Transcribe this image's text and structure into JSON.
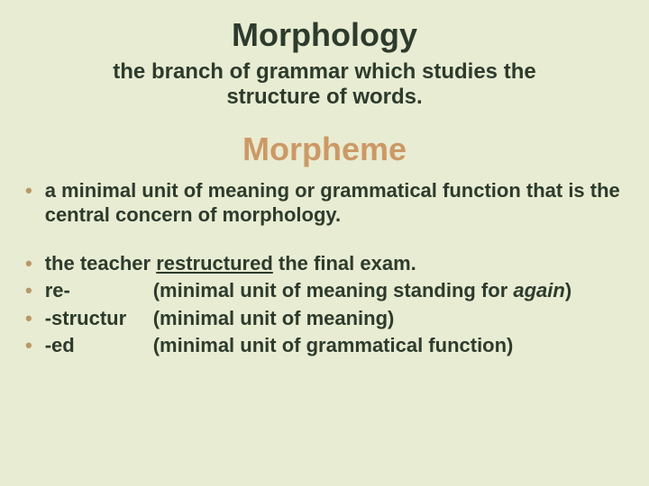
{
  "colors": {
    "background": "#e8ecd2",
    "heading_primary": "#2d3b2d",
    "heading_accent": "#cc9966",
    "body_text": "#2d3b2d",
    "bullet_marker": "#b89868"
  },
  "typography": {
    "title_fontsize": 36,
    "subtitle_fontsize": 24,
    "body_fontsize": 22,
    "weight": "bold",
    "family": "Trebuchet MS / Comic Sans style"
  },
  "title1": "Morphology",
  "subtitle1": "the branch of grammar which studies the structure of words.",
  "title2": "Morpheme",
  "def_bullet": "a minimal unit of meaning or grammatical function that is the central concern of morphology.",
  "example_sentence": {
    "pre": "the teacher ",
    "word": "restructured",
    "post": " the final exam."
  },
  "morphemes": [
    {
      "term": "re-",
      "desc_pre": "(minimal unit of meaning standing for ",
      "desc_italic": "again",
      "desc_post": ")"
    },
    {
      "term": "-structur",
      "desc_pre": "(minimal unit of meaning)",
      "desc_italic": "",
      "desc_post": ""
    },
    {
      "term": "-ed",
      "desc_pre": "(minimal unit of grammatical function)",
      "desc_italic": "",
      "desc_post": ""
    }
  ]
}
